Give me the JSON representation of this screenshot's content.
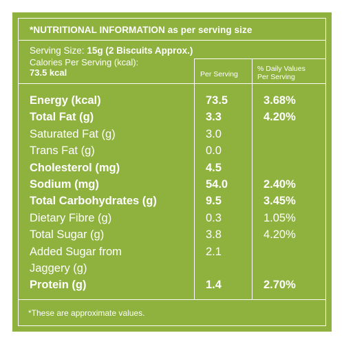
{
  "title": "*NUTRITIONAL INFORMATION as per serving size",
  "serving_size_label": "Serving Size:",
  "serving_size_value": "15g (2 Biscuits Approx.)",
  "calories_label": "Calories Per Serving (kcal):",
  "calories_value": "73.5 kcal",
  "columns": {
    "per_serving": "Per Serving",
    "daily_values_line1": "% Daily Values",
    "daily_values_line2": "Per Serving"
  },
  "rows": [
    {
      "name": "Energy (kcal)",
      "value": "73.5",
      "dv": "3.68%",
      "bold": true
    },
    {
      "name": "Total Fat (g)",
      "value": "3.3",
      "dv": "4.20%",
      "bold": true
    },
    {
      "name": "Saturated Fat (g)",
      "value": "3.0",
      "dv": "",
      "bold": false
    },
    {
      "name": "Trans Fat (g)",
      "value": "0.0",
      "dv": "",
      "bold": false
    },
    {
      "name": "Cholesterol (mg)",
      "value": "4.5",
      "dv": "",
      "bold": true
    },
    {
      "name": "Sodium (mg)",
      "value": "54.0",
      "dv": "2.40%",
      "bold": true
    },
    {
      "name": "Total Carbohydrates (g)",
      "value": "9.5",
      "dv": "3.45%",
      "bold": true
    },
    {
      "name": "Dietary Fibre (g)",
      "value": "0.3",
      "dv": "1.05%",
      "bold": false
    },
    {
      "name": "Total Sugar (g)",
      "value": "3.8",
      "dv": "4.20%",
      "bold": false
    },
    {
      "name": "Added Sugar from",
      "value": "2.1",
      "dv": "",
      "bold": false
    },
    {
      "name": "Jaggery (g)",
      "value": "",
      "dv": "",
      "bold": false
    },
    {
      "name": "Protein (g)",
      "value": "1.4",
      "dv": "2.70%",
      "bold": true
    }
  ],
  "footnote": "*These are approximate values.",
  "colors": {
    "background": "#8fb23f",
    "text": "#ffffff"
  }
}
